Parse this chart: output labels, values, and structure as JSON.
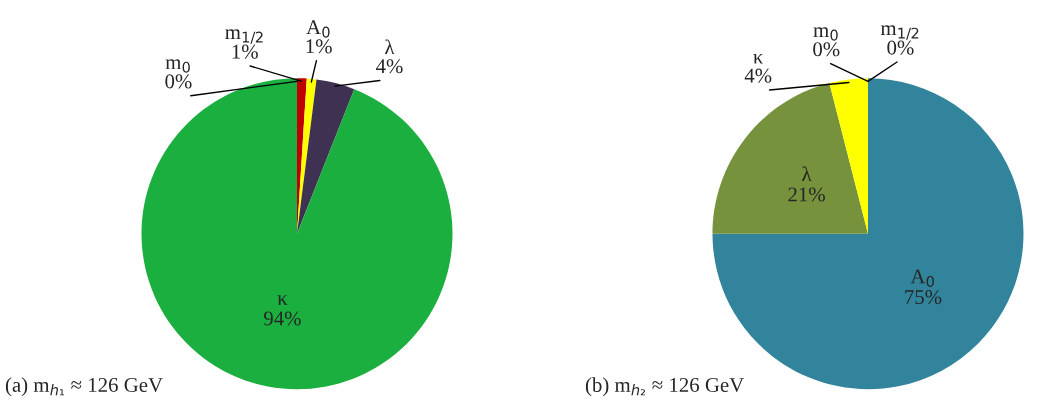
{
  "chart_data": [
    {
      "type": "pie",
      "categories": [
        "m$_{0}$",
        "m$_{1/2}$",
        "A$_{0}$",
        "λ",
        "κ"
      ],
      "values": [
        0,
        1,
        1,
        4,
        94
      ],
      "colors": [
        "#7f7f7f",
        "#c00000",
        "#ffff00",
        "#3f3151",
        "#1aaf3e"
      ],
      "value_labels": [
        "0%",
        "1%",
        "1%",
        "4%",
        "94%"
      ],
      "annotations": [
        "(a) m$_{h₁}$ ≈ 126 GeV"
      ]
    },
    {
      "type": "pie",
      "categories": [
        "A$_{0}$",
        "λ",
        "κ",
        "m$_{0}$",
        "m$_{1/2}$"
      ],
      "values": [
        75,
        21,
        4,
        0,
        0
      ],
      "colors": [
        "#31849b",
        "#76923c",
        "#ffff00",
        "#7f7f7f",
        "#c00000"
      ],
      "value_labels": [
        "75%",
        "21%",
        "4%",
        "0%",
        "0%"
      ],
      "annotations": [
        "(b) m$_{h₂}$ ≈ 126 GeV"
      ]
    }
  ]
}
